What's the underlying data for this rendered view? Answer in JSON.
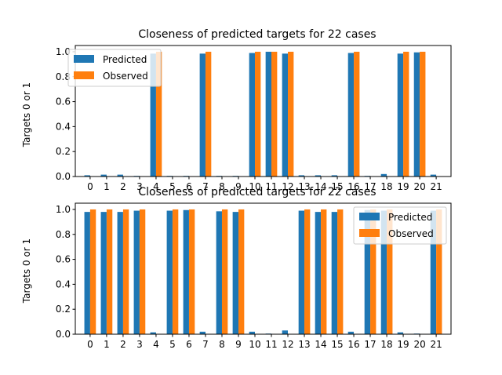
{
  "colors": {
    "predicted": "#1f77b4",
    "observed": "#ff7f0e"
  },
  "chart_data": [
    {
      "type": "bar",
      "title": "Closeness of predicted targets for 22 cases",
      "xlabel": "",
      "ylabel": "Targets 0 or 1",
      "ylim": [
        0,
        1.05
      ],
      "yticks": [
        "0.0",
        "0.2",
        "0.4",
        "0.6",
        "0.8",
        "1.0"
      ],
      "legend_position": "upper-left",
      "categories": [
        "0",
        "1",
        "2",
        "3",
        "4",
        "5",
        "6",
        "7",
        "8",
        "9",
        "10",
        "11",
        "12",
        "13",
        "14",
        "15",
        "16",
        "17",
        "18",
        "19",
        "20",
        "21"
      ],
      "series": [
        {
          "name": "Predicted",
          "values": [
            0.01,
            0.015,
            0.015,
            0.005,
            0.985,
            0.005,
            0.005,
            0.985,
            0.005,
            0.005,
            0.99,
            1.0,
            0.985,
            0.01,
            0.01,
            0.01,
            0.99,
            0.005,
            0.02,
            0.985,
            0.995,
            0.015
          ]
        },
        {
          "name": "Observed",
          "values": [
            0,
            0,
            0,
            0,
            1,
            0,
            0,
            1,
            0,
            0,
            1,
            1,
            1,
            0,
            0,
            0,
            1,
            0,
            0,
            1,
            1,
            0
          ]
        }
      ]
    },
    {
      "type": "bar",
      "title": "Closeness of predicted targets for 22 cases",
      "xlabel": "",
      "ylabel": "Targets 0 or 1",
      "ylim": [
        0,
        1.05
      ],
      "yticks": [
        "0.0",
        "0.2",
        "0.4",
        "0.6",
        "0.8",
        "1.0"
      ],
      "legend_position": "upper-right",
      "categories": [
        "0",
        "1",
        "2",
        "3",
        "4",
        "5",
        "6",
        "7",
        "8",
        "9",
        "10",
        "11",
        "12",
        "13",
        "14",
        "15",
        "16",
        "17",
        "18",
        "19",
        "20",
        "21"
      ],
      "series": [
        {
          "name": "Predicted",
          "values": [
            0.98,
            0.98,
            0.98,
            0.99,
            0.015,
            0.99,
            0.995,
            0.02,
            0.985,
            0.98,
            0.02,
            0.005,
            0.03,
            0.99,
            0.98,
            0.98,
            0.02,
            0.995,
            0.99,
            0.015,
            0.005,
            0.99
          ]
        },
        {
          "name": "Observed",
          "values": [
            1,
            1,
            1,
            1,
            0,
            1,
            1,
            0,
            1,
            1,
            0,
            0,
            0,
            1,
            1,
            1,
            0,
            1,
            1,
            0,
            0,
            1
          ]
        }
      ]
    }
  ]
}
